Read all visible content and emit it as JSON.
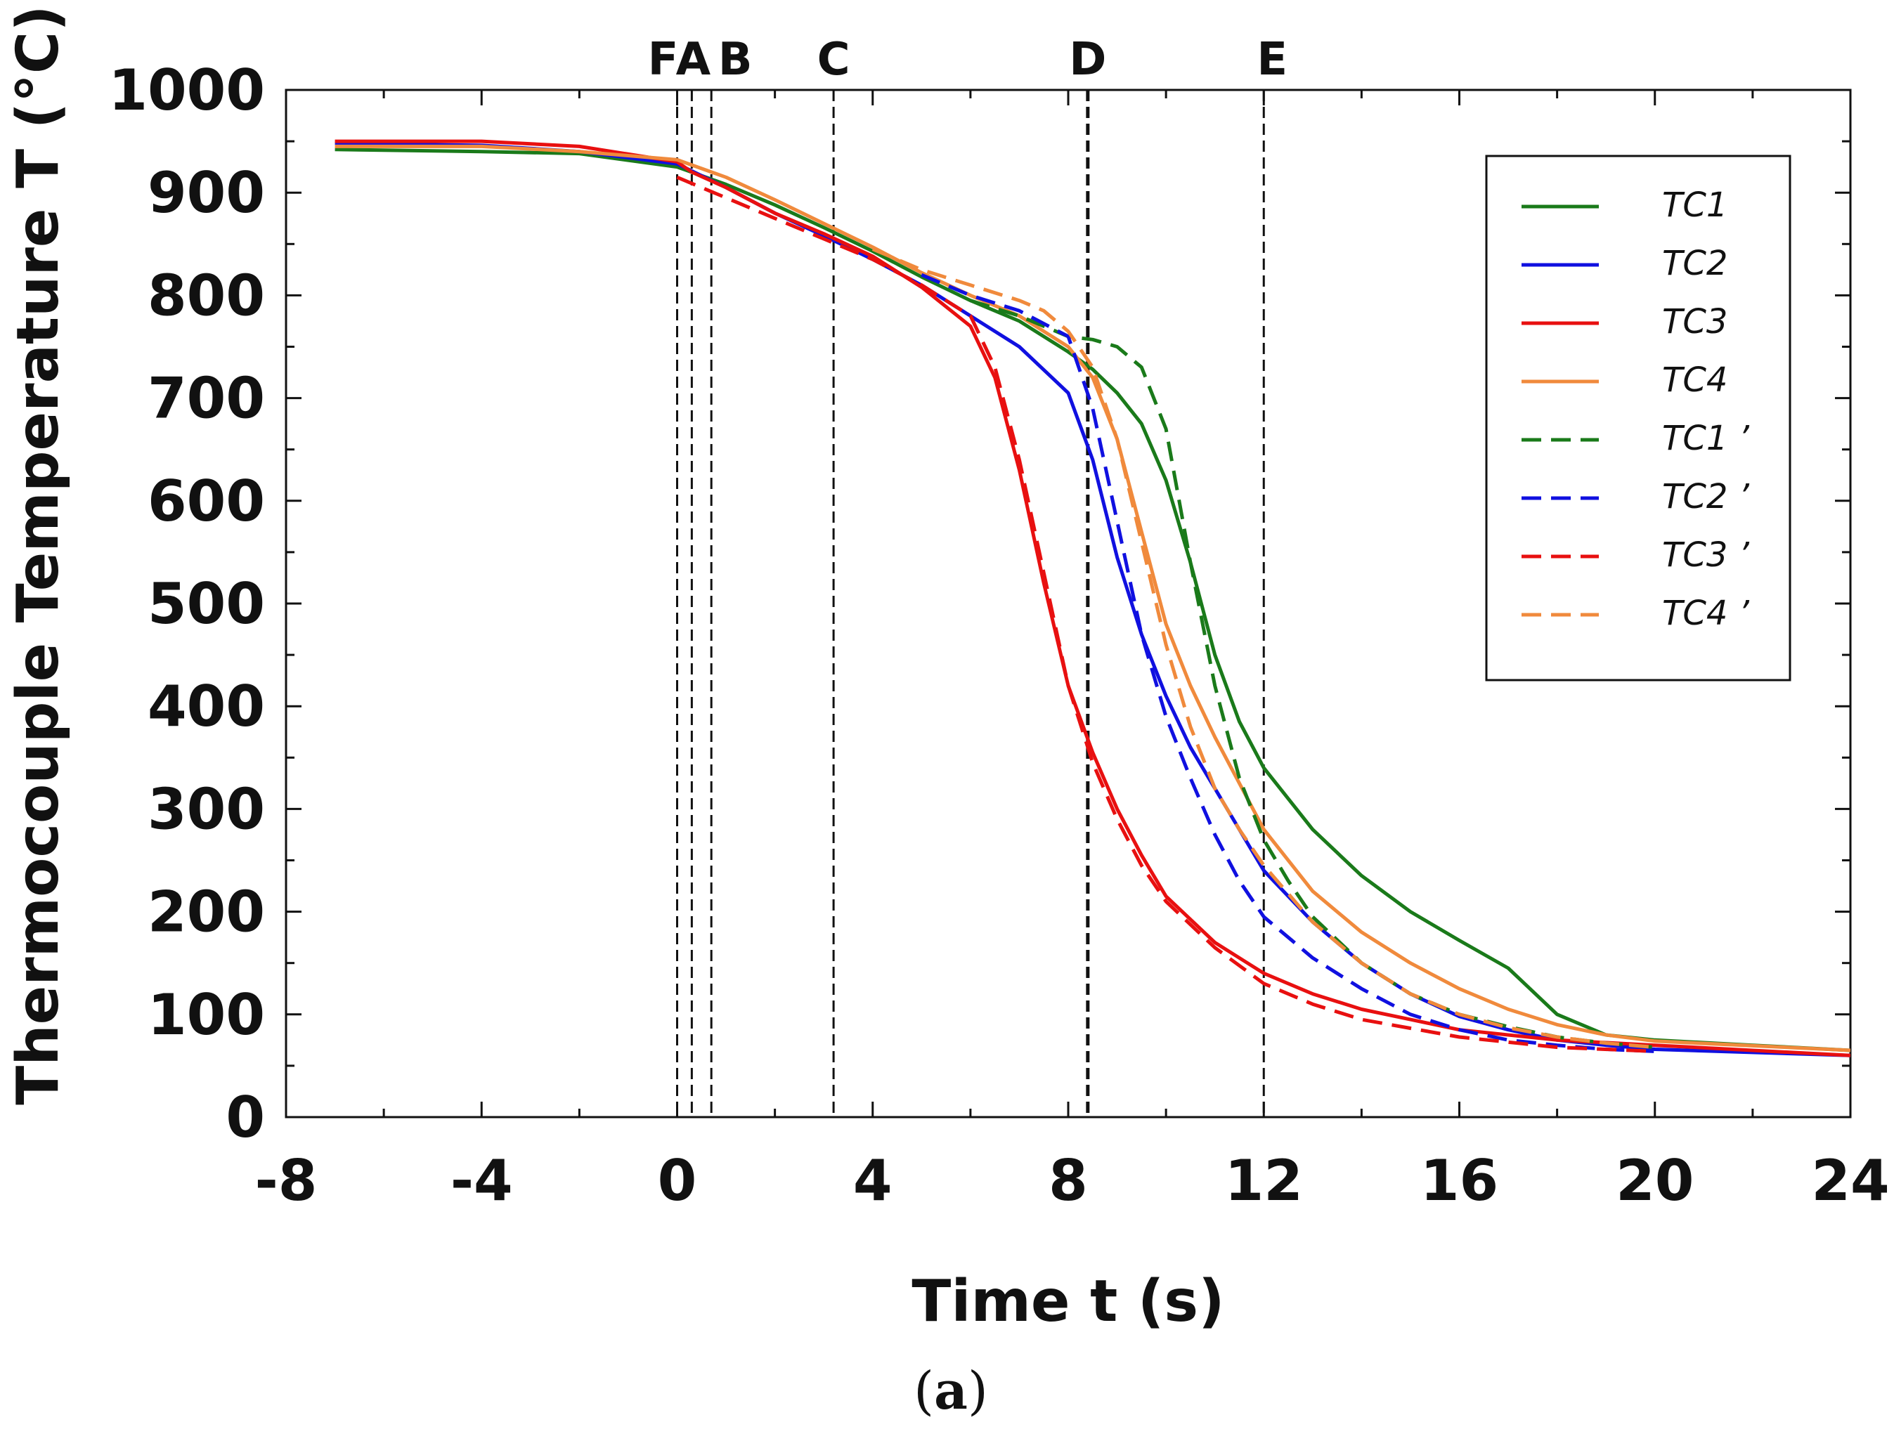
{
  "chart_data": {
    "type": "line",
    "title": "",
    "xlabel": "Time  t (s)",
    "ylabel": "Thermocouple Temperature  T (°C)",
    "xlim": [
      -8,
      24
    ],
    "ylim": [
      0,
      1000
    ],
    "x_ticks": [
      -8,
      -4,
      0,
      4,
      8,
      12,
      16,
      20,
      24
    ],
    "x_tick_labels": [
      "-8",
      "-4",
      "0",
      "4",
      "8",
      "12",
      "16",
      "20",
      "24"
    ],
    "y_ticks": [
      0,
      100,
      200,
      300,
      400,
      500,
      600,
      700,
      800,
      900,
      1000
    ],
    "y_tick_labels": [
      "0",
      "100",
      "200",
      "300",
      "400",
      "500",
      "600",
      "700",
      "800",
      "900",
      "1000"
    ],
    "grid": false,
    "legend_position": "top-right",
    "event_markers": [
      {
        "label": "F",
        "x": 0.0
      },
      {
        "label": "A",
        "x": 0.3
      },
      {
        "label": "B",
        "x": 0.7
      },
      {
        "label": "C",
        "x": 3.2
      },
      {
        "label": "D",
        "x": 8.4
      },
      {
        "label": "E",
        "x": 12.0
      }
    ],
    "series": [
      {
        "name": "TC1",
        "color": "#1a7a1a",
        "dash": "solid",
        "x": [
          -7,
          -4,
          -2,
          0,
          1,
          2,
          3,
          4,
          5,
          6,
          7,
          8,
          8.5,
          9,
          9.5,
          10,
          10.5,
          11,
          11.5,
          12,
          13,
          14,
          15,
          16,
          17,
          18,
          19,
          20,
          22,
          24
        ],
        "y": [
          942,
          940,
          938,
          925,
          908,
          888,
          866,
          843,
          818,
          795,
          775,
          745,
          728,
          705,
          675,
          620,
          540,
          450,
          385,
          340,
          280,
          235,
          200,
          172,
          145,
          100,
          80,
          75,
          70,
          65
        ]
      },
      {
        "name": "TC2",
        "color": "#1010e0",
        "dash": "solid",
        "x": [
          -7,
          -4,
          -2,
          0,
          1,
          2,
          3,
          4,
          5,
          6,
          7,
          8,
          8.5,
          9,
          9.5,
          10,
          10.5,
          11,
          12,
          13,
          14,
          15,
          16,
          17,
          18,
          19,
          20,
          24
        ],
        "y": [
          948,
          946,
          940,
          928,
          905,
          880,
          858,
          835,
          810,
          780,
          750,
          705,
          640,
          545,
          470,
          410,
          360,
          320,
          240,
          190,
          150,
          120,
          98,
          85,
          75,
          70,
          66,
          60
        ]
      },
      {
        "name": "TC3",
        "color": "#e81010",
        "dash": "solid",
        "x": [
          -7,
          -4,
          -2,
          0,
          0.3,
          1,
          2,
          3,
          4,
          5,
          6,
          6.5,
          7,
          7.5,
          8,
          8.5,
          9,
          9.5,
          10,
          11,
          12,
          13,
          14,
          15,
          16,
          18,
          20,
          24
        ],
        "y": [
          950,
          950,
          945,
          930,
          920,
          905,
          880,
          860,
          838,
          808,
          770,
          720,
          630,
          520,
          420,
          355,
          300,
          255,
          215,
          170,
          140,
          120,
          105,
          95,
          85,
          75,
          70,
          60
        ]
      },
      {
        "name": "TC4",
        "color": "#f08a3c",
        "dash": "solid",
        "x": [
          -7,
          -4,
          -2,
          0,
          1,
          2,
          3,
          4,
          5,
          6,
          7,
          8,
          8.5,
          9,
          9.5,
          10,
          10.5,
          11,
          12,
          13,
          14,
          15,
          16,
          17,
          18,
          19,
          20,
          24
        ],
        "y": [
          945,
          945,
          940,
          932,
          915,
          893,
          870,
          847,
          822,
          800,
          780,
          750,
          720,
          660,
          570,
          480,
          420,
          370,
          280,
          220,
          180,
          150,
          125,
          105,
          90,
          80,
          74,
          65
        ]
      },
      {
        "name": "TC1 ’",
        "color": "#1a7a1a",
        "dash": "dashed",
        "x": [
          6,
          7,
          7.5,
          8,
          8.5,
          9,
          9.5,
          10,
          10.5,
          11,
          11.5,
          12,
          12.5,
          13,
          14,
          15,
          16,
          17,
          18,
          19,
          20
        ],
        "y": [
          795,
          780,
          770,
          760,
          757,
          750,
          730,
          670,
          540,
          420,
          330,
          270,
          230,
          195,
          150,
          120,
          100,
          88,
          78,
          72,
          68
        ]
      },
      {
        "name": "TC2 ’",
        "color": "#1010e0",
        "dash": "dashed",
        "x": [
          5,
          6,
          7,
          8,
          8.5,
          9,
          9.5,
          10,
          10.5,
          11,
          11.5,
          12,
          13,
          14,
          15,
          16,
          17,
          18,
          19,
          20
        ],
        "y": [
          820,
          800,
          785,
          760,
          690,
          580,
          470,
          390,
          330,
          275,
          230,
          195,
          155,
          125,
          100,
          85,
          75,
          70,
          66,
          64
        ]
      },
      {
        "name": "TC3 ’",
        "color": "#e81010",
        "dash": "dashed",
        "x": [
          0,
          0.5,
          1,
          2,
          3,
          4,
          5,
          6,
          6.5,
          7,
          7.5,
          8,
          8.5,
          9,
          9.5,
          10,
          11,
          12,
          13,
          14,
          16,
          18,
          20
        ],
        "y": [
          915,
          905,
          895,
          875,
          855,
          835,
          810,
          780,
          730,
          640,
          530,
          420,
          345,
          290,
          245,
          210,
          165,
          130,
          110,
          95,
          78,
          68,
          64
        ]
      },
      {
        "name": "TC4 ’",
        "color": "#f08a3c",
        "dash": "dashed",
        "x": [
          4,
          5,
          6,
          7,
          7.5,
          8,
          8.5,
          9,
          9.5,
          10,
          10.5,
          11,
          11.5,
          12,
          13,
          14,
          15,
          16,
          17,
          18,
          19,
          20
        ],
        "y": [
          845,
          825,
          810,
          795,
          785,
          765,
          730,
          660,
          560,
          460,
          380,
          320,
          280,
          245,
          190,
          150,
          120,
          100,
          87,
          78,
          72,
          68
        ]
      }
    ]
  },
  "caption": {
    "open": "(",
    "letter": "a",
    "close": ")"
  }
}
